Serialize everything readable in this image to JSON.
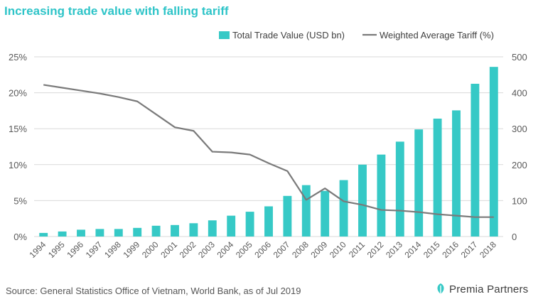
{
  "title": "Increasing trade value with falling tariff",
  "source": "Source: General Statistics Office of Vietnam, World Bank, as of Jul 2019",
  "brand": "Premia Partners",
  "chart_data": {
    "type": "bar+line",
    "categories": [
      "1994",
      "1995",
      "1996",
      "1997",
      "1998",
      "1999",
      "2000",
      "2001",
      "2002",
      "2003",
      "2004",
      "2005",
      "2006",
      "2007",
      "2008",
      "2009",
      "2010",
      "2011",
      "2012",
      "2013",
      "2014",
      "2015",
      "2016",
      "2017",
      "2018"
    ],
    "series": [
      {
        "name": "Total Trade Value (USD bn)",
        "type": "bar",
        "axis": "right",
        "color": "#36c9c6",
        "values": [
          10,
          14,
          19,
          21,
          21,
          24,
          30,
          32,
          37,
          45,
          58,
          69,
          84,
          113,
          143,
          127,
          157,
          200,
          228,
          264,
          298,
          328,
          351,
          425,
          472
        ]
      },
      {
        "name": "Weighted Average Tariff (%)",
        "type": "line",
        "axis": "left",
        "color": "#7a7a7a",
        "values": [
          21.1,
          20.7,
          20.3,
          19.9,
          19.4,
          18.8,
          17.0,
          15.2,
          14.7,
          11.8,
          11.7,
          11.4,
          10.2,
          9.1,
          5.1,
          6.7,
          4.9,
          4.4,
          3.7,
          3.6,
          3.4,
          3.1,
          2.9,
          2.7,
          2.7
        ]
      }
    ],
    "y_left": {
      "ticks": [
        "0%",
        "5%",
        "10%",
        "15%",
        "20%",
        "25%"
      ],
      "ylim": [
        0,
        25
      ]
    },
    "y_right": {
      "ticks": [
        "0",
        "100",
        "200",
        "300",
        "400",
        "500"
      ],
      "ylim": [
        0,
        500
      ]
    },
    "legend_position": "top-right",
    "grid": true
  }
}
